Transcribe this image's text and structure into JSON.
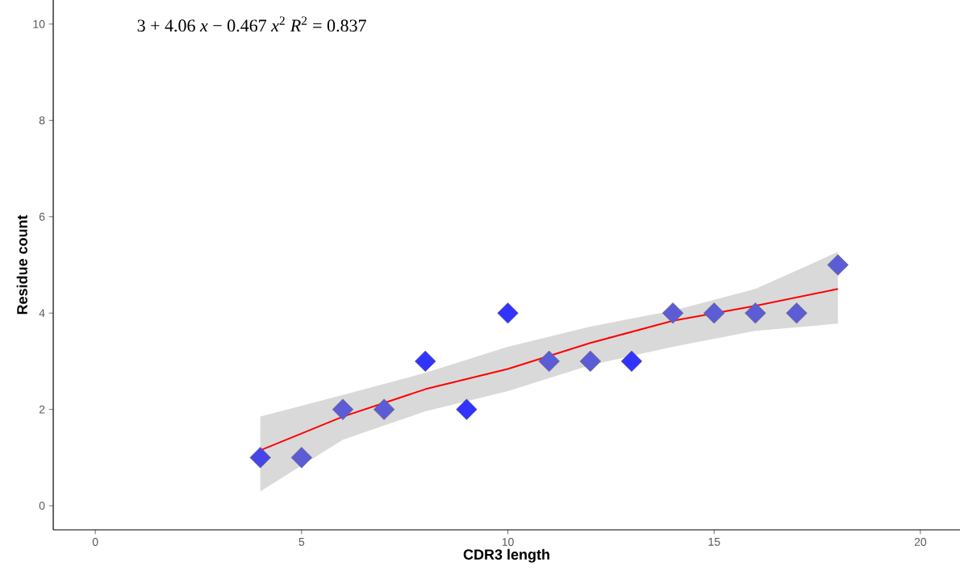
{
  "chart_data": {
    "type": "scatter",
    "xlabel": "CDR3 length",
    "ylabel": "Residue count",
    "annotations": [
      "3 + 4.06 *x* − 0.467 *x*$^{2}$      *R*$^{2}$ = 0.837"
    ],
    "xlim": [
      -1.02,
      20.96
    ],
    "ylim": [
      -0.5,
      10.5
    ],
    "xticks": [
      0,
      5,
      10,
      15,
      20
    ],
    "yticks": [
      0,
      2,
      4,
      6,
      8,
      10
    ],
    "series": [
      {
        "type": "line",
        "color": "#ff0000",
        "marker": "none",
        "line_style": "solid",
        "x": [
          4,
          6,
          8,
          10,
          12,
          14,
          16,
          18
        ],
        "values": [
          1.15,
          1.85,
          2.42,
          2.84,
          3.38,
          3.84,
          4.15,
          4.5
        ],
        "lower": [
          0.3,
          1.37,
          1.96,
          2.38,
          2.92,
          3.3,
          3.63,
          3.78
        ],
        "upper": [
          1.85,
          2.3,
          2.76,
          3.3,
          3.72,
          4.05,
          4.5,
          5.27
        ]
      },
      {
        "marker": "diamond",
        "x": [
          4,
          5,
          6,
          7,
          8,
          9,
          10,
          11,
          12,
          13,
          14,
          15,
          16,
          17,
          18
        ],
        "values": [
          1,
          1,
          2,
          2,
          3,
          2,
          4,
          3,
          3,
          3,
          4,
          4,
          4,
          4,
          5
        ],
        "colors": [
          "#4646e8",
          "#5c5cd6",
          "#5c5cd6",
          "#5c5cd6",
          "#3333ff",
          "#3333ff",
          "#3333ff",
          "#5c5cd6",
          "#5c5cd6",
          "#3333ff",
          "#5c5cd6",
          "#5c5cd6",
          "#5c5cd6",
          "#5c5cd6",
          "#5c5cd6"
        ]
      }
    ]
  }
}
